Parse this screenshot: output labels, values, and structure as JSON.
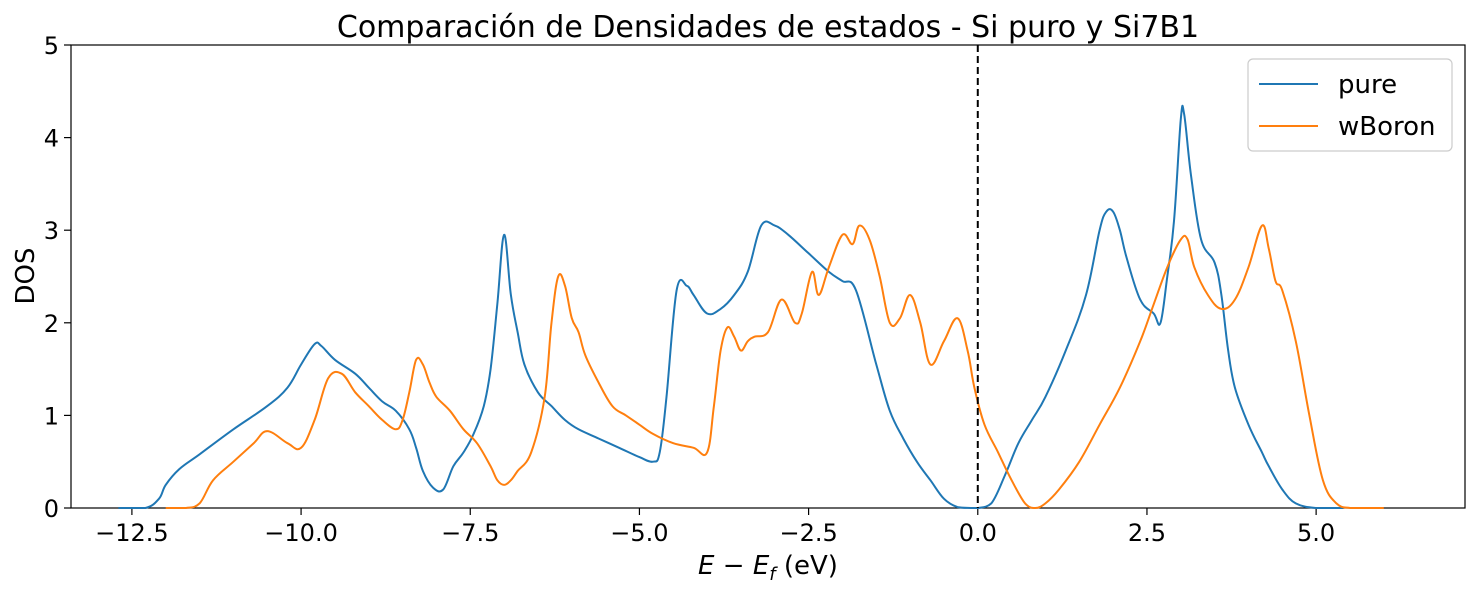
{
  "chart_data": {
    "type": "line",
    "title": "Comparación de Densidades de estados - Si puro y Si7B1",
    "xlabel": "E - E_f (eV)",
    "ylabel": "DOS",
    "xlim": [
      -13.4,
      7.2
    ],
    "ylim": [
      0,
      5
    ],
    "xticks": [
      -12.5,
      -10.0,
      -7.5,
      -5.0,
      -2.5,
      0.0,
      2.5,
      5.0
    ],
    "xtick_labels": [
      "−12.5",
      "−10.0",
      "−7.5",
      "−5.0",
      "−2.5",
      "0.0",
      "2.5",
      "5.0"
    ],
    "yticks": [
      0,
      1,
      2,
      3,
      4,
      5
    ],
    "ytick_labels": [
      "0",
      "1",
      "2",
      "3",
      "4",
      "5"
    ],
    "fermi_line_x": 0.0,
    "legend_position": "top-right",
    "series": [
      {
        "name": "pure",
        "color": "#1f77b4",
        "x": [
          -12.7,
          -12.3,
          -12.1,
          -12.0,
          -11.8,
          -11.5,
          -11.0,
          -10.5,
          -10.2,
          -10.0,
          -9.8,
          -9.7,
          -9.5,
          -9.2,
          -9.0,
          -8.8,
          -8.6,
          -8.4,
          -8.3,
          -8.2,
          -8.05,
          -7.9,
          -7.75,
          -7.6,
          -7.45,
          -7.3,
          -7.2,
          -7.1,
          -7.0,
          -6.9,
          -6.8,
          -6.7,
          -6.5,
          -6.3,
          -6.1,
          -5.9,
          -5.6,
          -5.3,
          -5.0,
          -4.8,
          -4.7,
          -4.6,
          -4.45,
          -4.3,
          -4.2,
          -4.0,
          -3.8,
          -3.6,
          -3.4,
          -3.2,
          -3.0,
          -2.8,
          -2.5,
          -2.2,
          -2.0,
          -1.8,
          -1.5,
          -1.3,
          -1.1,
          -0.9,
          -0.7,
          -0.5,
          -0.3,
          -0.1,
          0.0,
          0.2,
          0.4,
          0.6,
          0.8,
          1.0,
          1.3,
          1.6,
          1.8,
          1.9,
          2.0,
          2.1,
          2.2,
          2.4,
          2.6,
          2.7,
          2.8,
          2.9,
          3.0,
          3.05,
          3.15,
          3.3,
          3.5,
          3.6,
          3.7,
          3.8,
          4.0,
          4.2,
          4.3,
          4.5,
          4.7,
          5.0,
          5.4
        ],
        "y": [
          0.0,
          0.0,
          0.1,
          0.25,
          0.42,
          0.58,
          0.85,
          1.1,
          1.3,
          1.55,
          1.77,
          1.75,
          1.6,
          1.45,
          1.3,
          1.15,
          1.05,
          0.85,
          0.65,
          0.4,
          0.22,
          0.2,
          0.45,
          0.6,
          0.8,
          1.1,
          1.5,
          2.2,
          2.95,
          2.3,
          1.9,
          1.55,
          1.25,
          1.1,
          0.95,
          0.85,
          0.75,
          0.65,
          0.55,
          0.5,
          0.6,
          1.2,
          2.35,
          2.4,
          2.3,
          2.1,
          2.15,
          2.3,
          2.55,
          3.05,
          3.05,
          2.95,
          2.75,
          2.55,
          2.45,
          2.35,
          1.55,
          1.05,
          0.75,
          0.5,
          0.3,
          0.1,
          0.01,
          0.0,
          0.0,
          0.05,
          0.35,
          0.7,
          0.95,
          1.2,
          1.7,
          2.3,
          3.0,
          3.2,
          3.2,
          3.0,
          2.7,
          2.25,
          2.1,
          2.0,
          2.5,
          3.1,
          4.2,
          4.25,
          3.6,
          2.9,
          2.65,
          2.3,
          1.7,
          1.3,
          0.9,
          0.6,
          0.45,
          0.2,
          0.05,
          0.0,
          0.0
        ]
      },
      {
        "name": "wBoron",
        "color": "#ff7f0e",
        "x": [
          -12.0,
          -11.7,
          -11.5,
          -11.3,
          -11.0,
          -10.7,
          -10.5,
          -10.2,
          -10.0,
          -9.8,
          -9.6,
          -9.4,
          -9.2,
          -9.0,
          -8.8,
          -8.6,
          -8.5,
          -8.4,
          -8.3,
          -8.2,
          -8.1,
          -8.0,
          -7.8,
          -7.6,
          -7.4,
          -7.2,
          -7.1,
          -7.0,
          -6.9,
          -6.8,
          -6.6,
          -6.4,
          -6.3,
          -6.2,
          -6.1,
          -6.0,
          -5.9,
          -5.8,
          -5.6,
          -5.4,
          -5.2,
          -5.0,
          -4.8,
          -4.5,
          -4.2,
          -4.0,
          -3.9,
          -3.8,
          -3.7,
          -3.6,
          -3.5,
          -3.4,
          -3.3,
          -3.1,
          -2.9,
          -2.7,
          -2.6,
          -2.45,
          -2.35,
          -2.2,
          -2.0,
          -1.85,
          -1.75,
          -1.6,
          -1.45,
          -1.3,
          -1.15,
          -1.0,
          -0.85,
          -0.7,
          -0.5,
          -0.3,
          -0.15,
          -0.05,
          0.1,
          0.3,
          0.5,
          0.7,
          0.85,
          1.0,
          1.2,
          1.5,
          1.8,
          2.1,
          2.4,
          2.6,
          2.8,
          3.0,
          3.1,
          3.2,
          3.4,
          3.6,
          3.8,
          4.0,
          4.2,
          4.3,
          4.4,
          4.5,
          4.7,
          4.9,
          5.1,
          5.3,
          5.5,
          5.8,
          6.0
        ],
        "y": [
          0.0,
          0.0,
          0.05,
          0.3,
          0.5,
          0.7,
          0.83,
          0.7,
          0.65,
          0.95,
          1.4,
          1.45,
          1.25,
          1.1,
          0.95,
          0.85,
          0.95,
          1.25,
          1.6,
          1.55,
          1.35,
          1.2,
          1.05,
          0.85,
          0.7,
          0.45,
          0.3,
          0.25,
          0.3,
          0.4,
          0.6,
          1.2,
          2.0,
          2.5,
          2.4,
          2.05,
          1.9,
          1.65,
          1.35,
          1.1,
          1.0,
          0.9,
          0.8,
          0.7,
          0.65,
          0.6,
          1.1,
          1.7,
          1.95,
          1.85,
          1.7,
          1.8,
          1.85,
          1.9,
          2.25,
          2.0,
          2.1,
          2.55,
          2.3,
          2.6,
          2.95,
          2.85,
          3.05,
          2.9,
          2.5,
          2.0,
          2.05,
          2.3,
          2.0,
          1.55,
          1.8,
          2.05,
          1.7,
          1.3,
          0.9,
          0.6,
          0.3,
          0.05,
          0.0,
          0.05,
          0.2,
          0.5,
          0.9,
          1.3,
          1.8,
          2.2,
          2.6,
          2.9,
          2.9,
          2.6,
          2.3,
          2.15,
          2.25,
          2.6,
          3.05,
          2.8,
          2.45,
          2.35,
          1.8,
          1.0,
          0.3,
          0.05,
          0.0,
          0.0,
          0.0
        ]
      }
    ]
  }
}
